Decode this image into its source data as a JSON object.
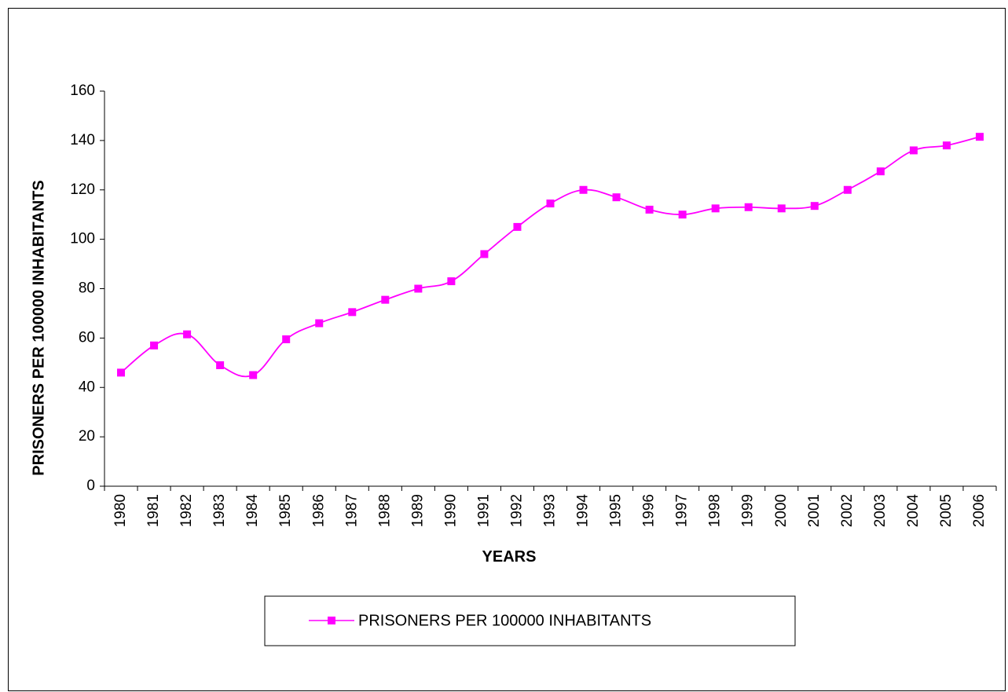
{
  "chart_data": {
    "type": "line",
    "title": "",
    "xlabel": "YEARS",
    "ylabel": "PRISONERS PER 100000  INHABITANTS",
    "ylim": [
      0,
      160
    ],
    "y_ticks": [
      "0",
      "20",
      "40",
      "60",
      "80",
      "100",
      "120",
      "140",
      "160"
    ],
    "grid": false,
    "legend_position": "bottom-center",
    "categories": [
      "1980",
      "1981",
      "1982",
      "1983",
      "1984",
      "1985",
      "1986",
      "1987",
      "1988",
      "1989",
      "1990",
      "1991",
      "1992",
      "1993",
      "1994",
      "1995",
      "1996",
      "1997",
      "1998",
      "1999",
      "2000",
      "2001",
      "2002",
      "2003",
      "2004",
      "2005",
      "2006"
    ],
    "series": [
      {
        "name": "PRISONERS PER 100000 INHABITANTS",
        "color": "#ff00ff",
        "marker": "square",
        "values": [
          46,
          57,
          61.5,
          49,
          45,
          59.5,
          66,
          70.5,
          75.5,
          80,
          83,
          94,
          105,
          114.5,
          120,
          117,
          112,
          110,
          112.5,
          113,
          112.5,
          113.5,
          120,
          127.5,
          136,
          138,
          141.5
        ]
      }
    ]
  }
}
